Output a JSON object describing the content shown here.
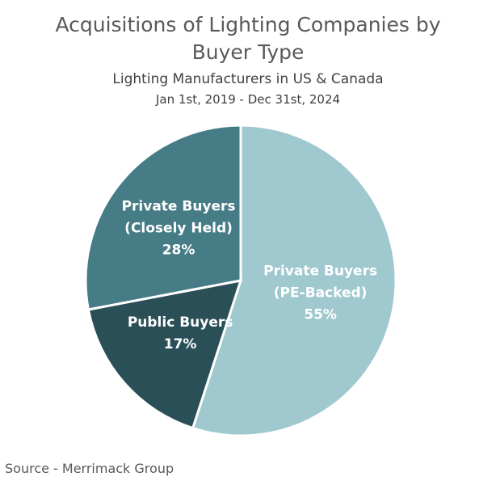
{
  "chart_data": {
    "type": "pie",
    "title": "Acquisitions of Lighting Companies by Buyer Type",
    "subtitle": [
      "Lighting Manufacturers in US & Canada",
      "Jan 1st, 2019 - Dec 31st, 2024"
    ],
    "categories": [
      "Private Buyers (PE-Backed)",
      "Public Buyers",
      "Private Buyers (Closely Held)"
    ],
    "values": [
      55,
      17,
      28
    ],
    "value_labels": [
      "55%",
      "17%",
      "28%"
    ],
    "colors": [
      "#9fc8cf",
      "#2b4f57",
      "#467c86"
    ],
    "source": "Source - Merrimack Group"
  }
}
